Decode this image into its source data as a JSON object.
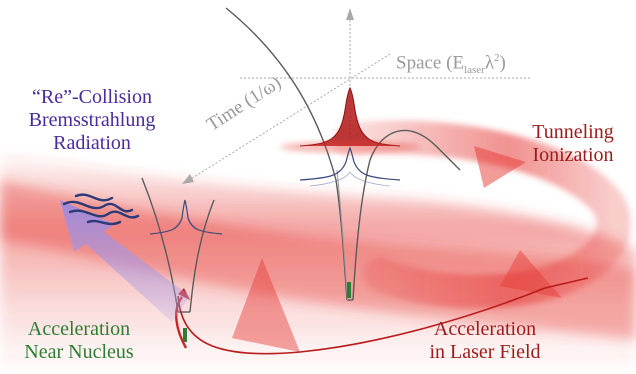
{
  "labels": {
    "recollision": [
      "“Re”-Collision",
      "Bremsstrahlung",
      "Radiation"
    ],
    "tunneling": [
      "Tunneling",
      "Ionization"
    ],
    "acceleration_laser": [
      "Acceleration",
      "in Laser Field"
    ],
    "acceleration_nucleus": [
      "Acceleration",
      "Near Nucleus"
    ]
  },
  "axes": {
    "space": {
      "prefix": "Space (E",
      "sub": "laser",
      "mid": "λ",
      "sup": "2",
      "suffix": ")"
    },
    "time": "Time (1/ω)"
  },
  "colors": {
    "laser_red": "#e53935",
    "dark_red": "#9b1c1c",
    "radiation_purple": "#4b2b9c",
    "arrow_lavender": "#b3a4e6",
    "nucleus_green": "#2e7d32",
    "potential_gray": "#5a5a5a",
    "wave_blue": "#3a4a7a"
  },
  "icons": [
    "radiation-wave-icon",
    "tunneling-arrow-icon"
  ]
}
